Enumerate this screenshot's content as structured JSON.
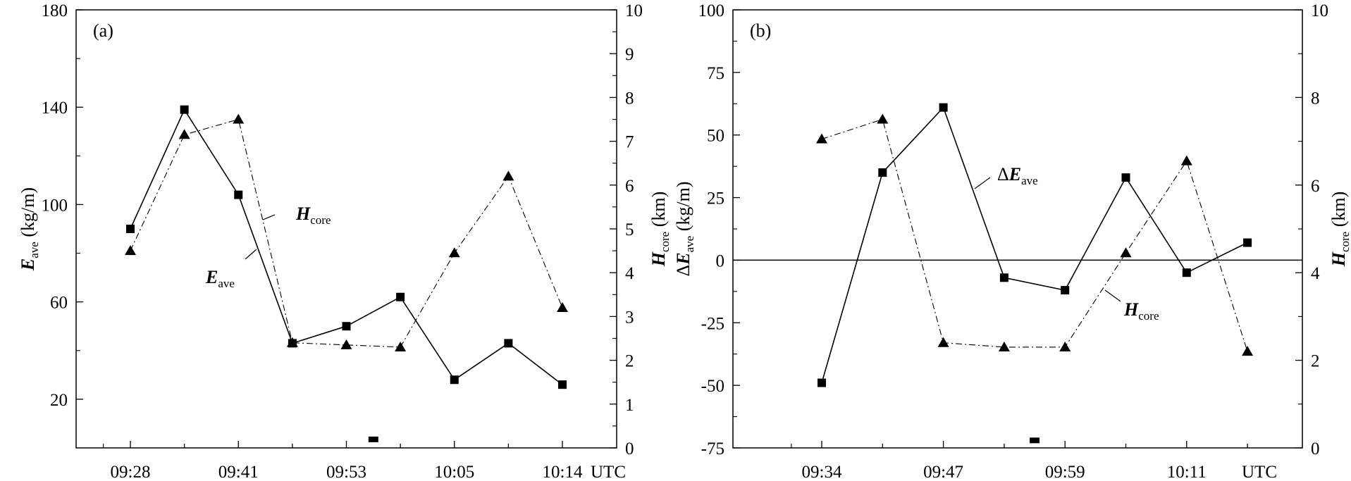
{
  "chart_data": [
    {
      "type": "line",
      "panel_label": "(a)",
      "x_ticks": [
        "09:28",
        "09:41",
        "09:53",
        "10:05",
        "10:14"
      ],
      "x_unit": "UTC",
      "y_left": {
        "label_main": "E",
        "label_sub": "ave",
        "unit": "(kg/m)",
        "lim": [
          0,
          180
        ],
        "ticks": [
          20,
          60,
          100,
          140,
          180
        ]
      },
      "y_right": {
        "label_main": "H",
        "label_sub": "core",
        "unit": "(km)",
        "lim": [
          0,
          10
        ],
        "ticks": [
          0,
          1,
          2,
          3,
          4,
          5,
          6,
          7,
          8,
          9,
          10
        ]
      },
      "series": [
        {
          "name_main": "E",
          "name_sub": "ave",
          "axis": "left",
          "marker": "square",
          "line": "solid",
          "x_index": [
            0,
            1,
            2,
            3,
            4,
            5,
            6,
            7,
            8
          ],
          "values": [
            90,
            139,
            104,
            43,
            50,
            62,
            28,
            43,
            26
          ]
        },
        {
          "name_main": "H",
          "name_sub": "core",
          "axis": "right",
          "marker": "triangle",
          "line": "dashdot",
          "x_index": [
            0,
            1,
            2,
            3,
            4,
            5,
            6,
            7,
            8
          ],
          "values": [
            4.5,
            7.15,
            7.5,
            2.4,
            2.35,
            2.3,
            4.45,
            6.2,
            3.2
          ]
        }
      ],
      "stray_marker": {
        "x_index": 4.5,
        "value": 3.5,
        "axis": "left"
      }
    },
    {
      "type": "line",
      "panel_label": "(b)",
      "x_ticks": [
        "09:34",
        "09:47",
        "09:59",
        "10:11"
      ],
      "x_unit": "UTC",
      "y_left": {
        "label_prefix": "Δ",
        "label_main": "E",
        "label_sub": "ave",
        "unit": "(kg/m)",
        "lim": [
          -75,
          100
        ],
        "ticks": [
          -75,
          -50,
          -25,
          0,
          25,
          50,
          75,
          100
        ]
      },
      "y_right": {
        "label_main": "H",
        "label_sub": "core",
        "unit": "(km)",
        "lim": [
          0,
          10
        ],
        "ticks": [
          0,
          2,
          4,
          6,
          8,
          10
        ]
      },
      "zero_line": 0,
      "series": [
        {
          "name_prefix": "Δ",
          "name_main": "E",
          "name_sub": "ave",
          "axis": "left",
          "marker": "square",
          "line": "solid",
          "x_index": [
            0,
            1,
            2,
            3,
            4,
            5,
            6,
            7
          ],
          "values": [
            -49,
            35,
            61,
            -7,
            -12,
            33,
            -5,
            7
          ]
        },
        {
          "name_main": "H",
          "name_sub": "core",
          "axis": "right",
          "marker": "triangle",
          "line": "dashdot",
          "x_index": [
            0,
            1,
            2,
            3,
            4,
            5,
            6,
            7
          ],
          "values": [
            7.05,
            7.5,
            2.4,
            2.3,
            2.3,
            4.45,
            6.55,
            2.2
          ]
        }
      ],
      "stray_marker": {
        "x_index": 3.5,
        "value": -72,
        "axis": "left"
      }
    }
  ]
}
